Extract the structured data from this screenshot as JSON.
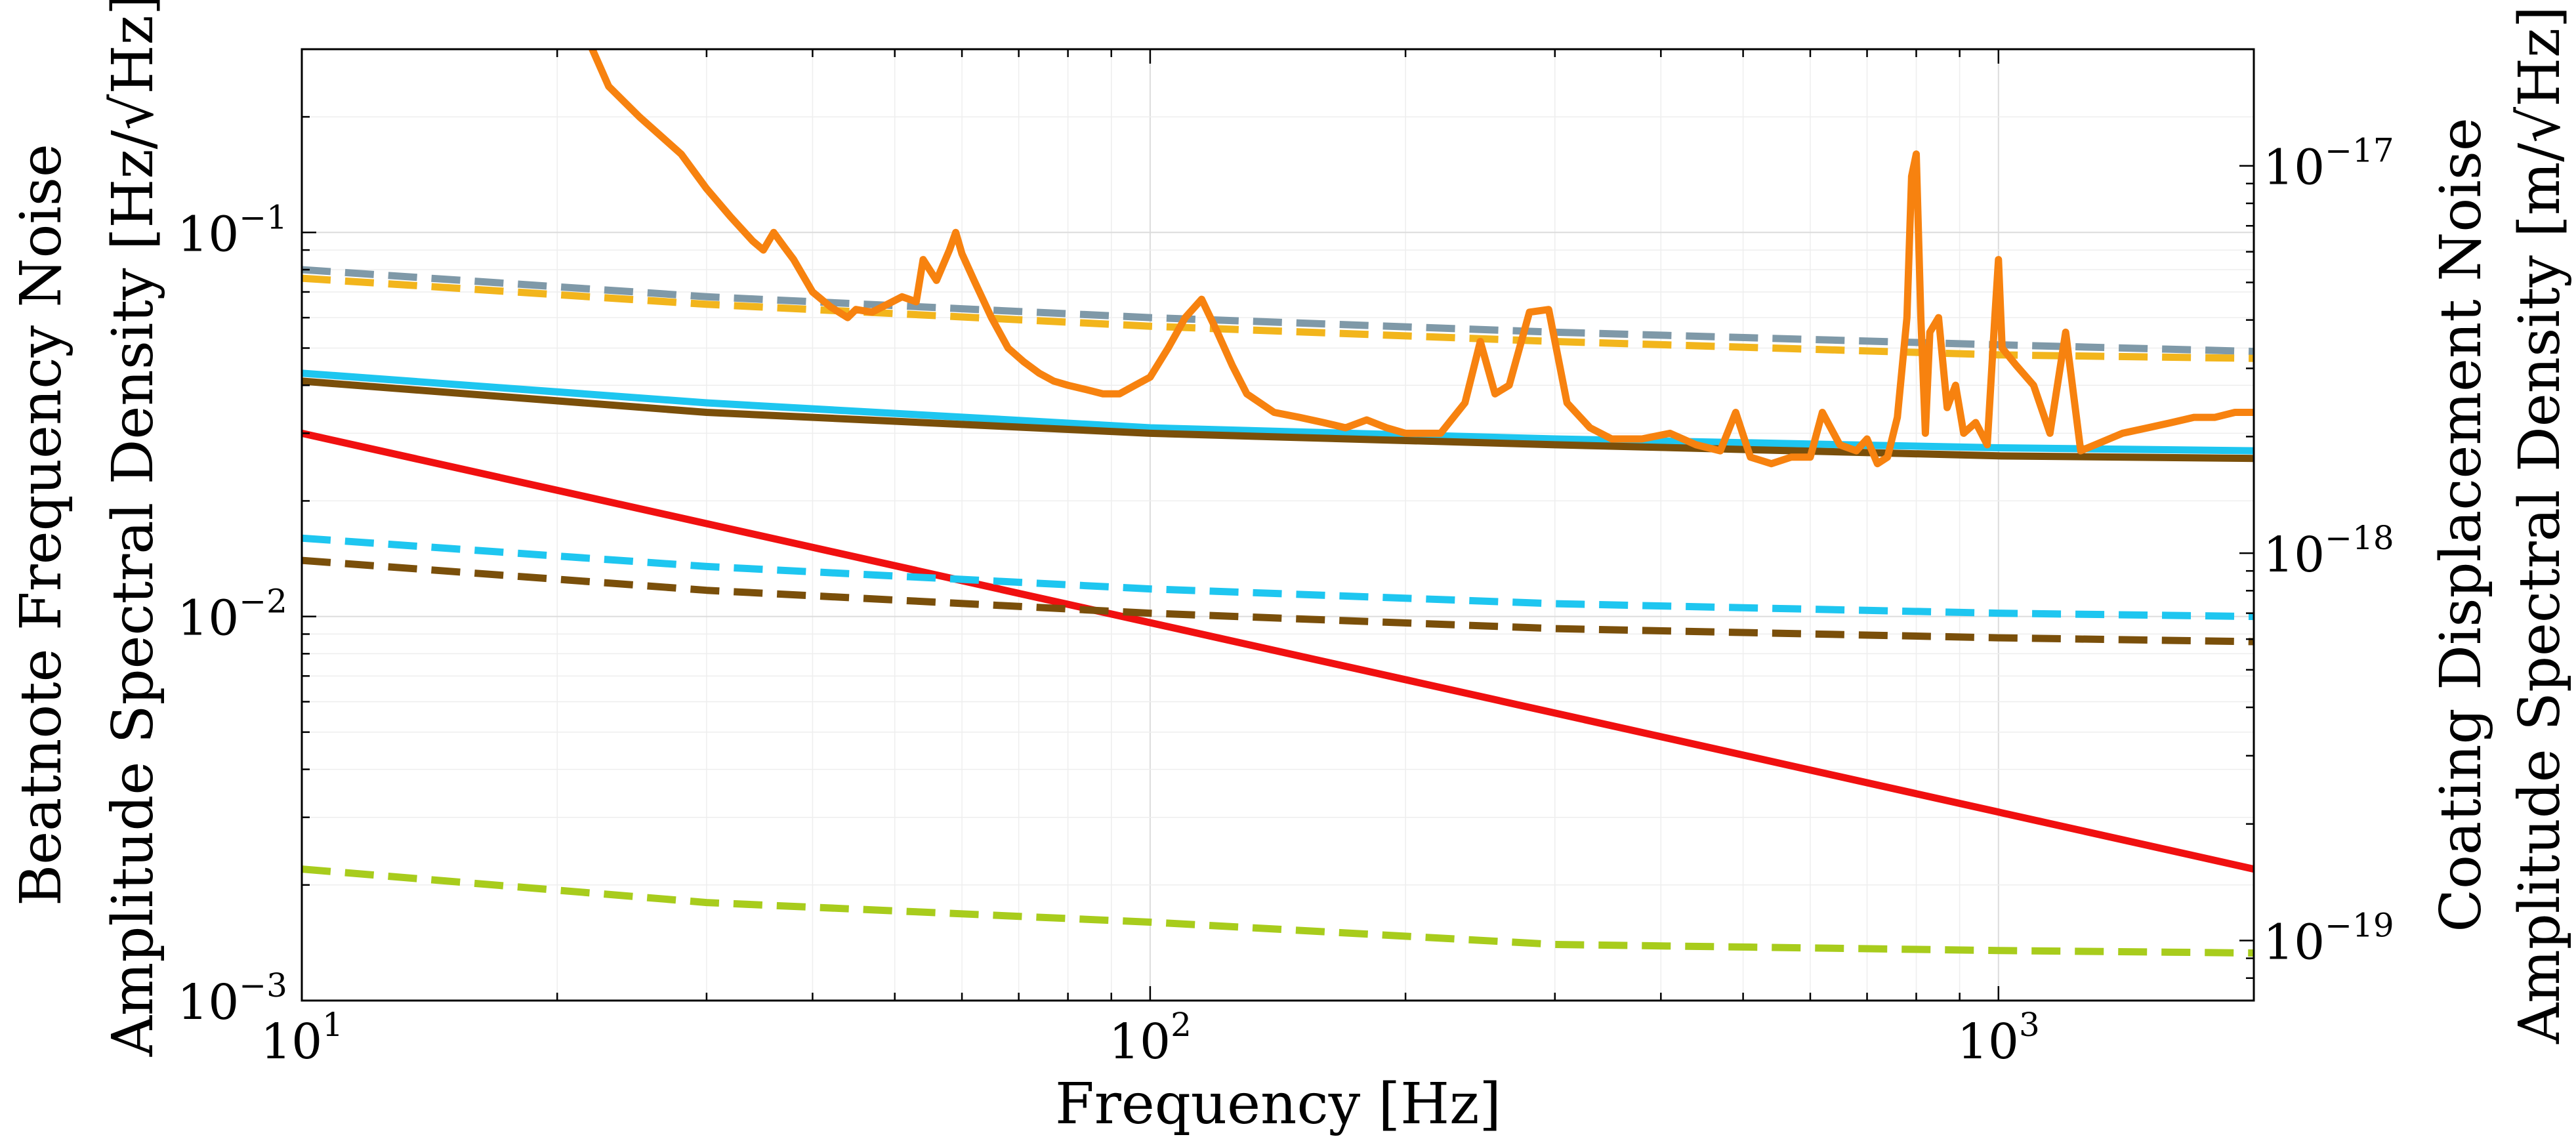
{
  "chart_data": {
    "type": "line",
    "xlabel": "Frequency [Hz]",
    "ylabel_left": [
      "Beatnote Frequency Noise",
      "Amplitude Spectral Density [Hz/√Hz]"
    ],
    "ylabel_right": [
      "Coating Displacement Noise",
      "Amplitude Spectral Density [m/√Hz]"
    ],
    "x_scale": "log",
    "y_scale": "log",
    "xlim": [
      10,
      2000
    ],
    "ylim_left": [
      0.001,
      0.3
    ],
    "ylim_right": [
      7e-20,
      2e-17
    ],
    "grid": true,
    "x_ticks": [
      {
        "base": "10",
        "exp": "1",
        "value": 10
      },
      {
        "base": "10",
        "exp": "2",
        "value": 100
      },
      {
        "base": "10",
        "exp": "3",
        "value": 1000
      }
    ],
    "y_ticks_left": [
      {
        "base": "10",
        "exp": "−3",
        "value": 0.001
      },
      {
        "base": "10",
        "exp": "−2",
        "value": 0.01
      },
      {
        "base": "10",
        "exp": "−1",
        "value": 0.1
      }
    ],
    "y_ticks_right": [
      {
        "base": "10",
        "exp": "−19",
        "value": 1e-19
      },
      {
        "base": "10",
        "exp": "−18",
        "value": 1e-18
      },
      {
        "base": "10",
        "exp": "−17",
        "value": 1e-17
      }
    ],
    "series": [
      {
        "color": "#7f99a8",
        "dash": true,
        "axis": "left",
        "x": [
          10,
          30,
          100,
          300,
          1000,
          2000
        ],
        "y": [
          0.08,
          0.068,
          0.06,
          0.055,
          0.051,
          0.049
        ]
      },
      {
        "color": "#f2b51c",
        "dash": true,
        "axis": "left",
        "x": [
          10,
          30,
          100,
          300,
          1000,
          2000
        ],
        "y": [
          0.076,
          0.065,
          0.057,
          0.052,
          0.048,
          0.047
        ]
      },
      {
        "color": "#1ec6f0",
        "dash": false,
        "axis": "left",
        "x": [
          10,
          30,
          100,
          300,
          1000,
          2000
        ],
        "y": [
          0.043,
          0.036,
          0.031,
          0.029,
          0.0275,
          0.027
        ]
      },
      {
        "color": "#7a4f0a",
        "dash": false,
        "axis": "left",
        "x": [
          10,
          30,
          100,
          300,
          1000,
          2000
        ],
        "y": [
          0.041,
          0.034,
          0.03,
          0.028,
          0.0262,
          0.0258
        ]
      },
      {
        "color": "#f01010",
        "dash": false,
        "axis": "left",
        "x": [
          10,
          2000
        ],
        "y": [
          0.03,
          0.0022
        ]
      },
      {
        "color": "#1ec6f0",
        "dash": true,
        "axis": "left",
        "x": [
          10,
          30,
          100,
          300,
          1000,
          2000
        ],
        "y": [
          0.016,
          0.0135,
          0.0118,
          0.0108,
          0.0102,
          0.01
        ]
      },
      {
        "color": "#7a4f0a",
        "dash": true,
        "axis": "left",
        "x": [
          10,
          30,
          100,
          300,
          1000,
          2000
        ],
        "y": [
          0.014,
          0.0117,
          0.0102,
          0.0093,
          0.0088,
          0.0086
        ]
      },
      {
        "color": "#a8cc1c",
        "dash": true,
        "axis": "left",
        "x": [
          10,
          30,
          100,
          300,
          1000,
          2000
        ],
        "y": [
          0.0022,
          0.0018,
          0.0016,
          0.0014,
          0.00135,
          0.00133
        ]
      },
      {
        "color": "#f7820f",
        "dash": false,
        "axis": "left",
        "x": [
          22,
          23,
          25,
          28,
          30,
          32,
          34,
          35,
          36,
          37,
          38,
          40,
          42,
          44,
          45,
          47,
          49,
          51,
          53,
          54,
          56,
          58,
          59,
          60,
          62,
          65,
          68,
          71,
          74,
          77,
          80,
          84,
          88,
          92,
          96,
          100,
          105,
          110,
          115,
          120,
          125,
          130,
          140,
          150,
          160,
          170,
          180,
          190,
          200,
          220,
          235,
          245,
          255,
          265,
          280,
          295,
          310,
          330,
          350,
          380,
          410,
          440,
          470,
          490,
          510,
          540,
          570,
          600,
          620,
          650,
          680,
          700,
          720,
          740,
          760,
          780,
          790,
          800,
          810,
          820,
          830,
          850,
          870,
          890,
          910,
          940,
          970,
          990,
          1000,
          1010,
          1050,
          1100,
          1150,
          1200,
          1250,
          1300,
          1400,
          1500,
          1600,
          1700,
          1800,
          1900,
          2000
        ],
        "y": [
          0.3,
          0.24,
          0.2,
          0.16,
          0.13,
          0.11,
          0.095,
          0.09,
          0.1,
          0.092,
          0.085,
          0.07,
          0.064,
          0.06,
          0.063,
          0.062,
          0.065,
          0.068,
          0.066,
          0.085,
          0.075,
          0.09,
          0.1,
          0.088,
          0.075,
          0.06,
          0.05,
          0.046,
          0.043,
          0.041,
          0.04,
          0.039,
          0.038,
          0.038,
          0.04,
          0.042,
          0.05,
          0.06,
          0.067,
          0.055,
          0.045,
          0.038,
          0.034,
          0.033,
          0.032,
          0.031,
          0.0325,
          0.031,
          0.03,
          0.03,
          0.036,
          0.052,
          0.038,
          0.04,
          0.062,
          0.063,
          0.036,
          0.031,
          0.029,
          0.029,
          0.03,
          0.028,
          0.027,
          0.034,
          0.026,
          0.025,
          0.026,
          0.026,
          0.034,
          0.028,
          0.027,
          0.029,
          0.025,
          0.026,
          0.033,
          0.06,
          0.14,
          0.16,
          0.06,
          0.03,
          0.055,
          0.06,
          0.035,
          0.04,
          0.03,
          0.032,
          0.028,
          0.06,
          0.085,
          0.05,
          0.045,
          0.04,
          0.03,
          0.055,
          0.027,
          0.028,
          0.03,
          0.031,
          0.032,
          0.033,
          0.033,
          0.034,
          0.034
        ]
      }
    ]
  }
}
